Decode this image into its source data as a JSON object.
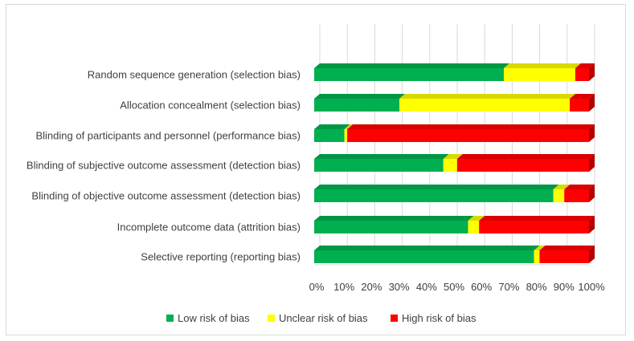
{
  "chart_data": {
    "type": "bar",
    "orientation": "horizontal",
    "stacked": true,
    "percent": true,
    "style": "3d",
    "categories": [
      "Random sequence generation (selection bias)",
      "Allocation concealment (selection bias)",
      "Blinding of participants and personnel (performance bias)",
      "Blinding of subjective outcome assessment (detection bias)",
      "Blinding of objective outcome assessment (detection bias)",
      "Incomplete outcome data (attrition bias)",
      "Selective reporting (reporting bias)"
    ],
    "series": [
      {
        "name": "Low risk of bias",
        "color": "#00b050",
        "values": [
          69,
          31,
          11,
          47,
          87,
          56,
          80
        ]
      },
      {
        "name": "Unclear risk of bias",
        "color": "#ffff00",
        "values": [
          26,
          62,
          1,
          5,
          4,
          4,
          2
        ]
      },
      {
        "name": "High risk of bias",
        "color": "#ff0000",
        "values": [
          5,
          7,
          88,
          48,
          9,
          40,
          18
        ]
      }
    ],
    "xlim": [
      0,
      100
    ],
    "xticks": [
      "0%",
      "10%",
      "20%",
      "30%",
      "40%",
      "50%",
      "60%",
      "70%",
      "80%",
      "90%",
      "100%"
    ],
    "grid": true,
    "legend": "bottom"
  }
}
